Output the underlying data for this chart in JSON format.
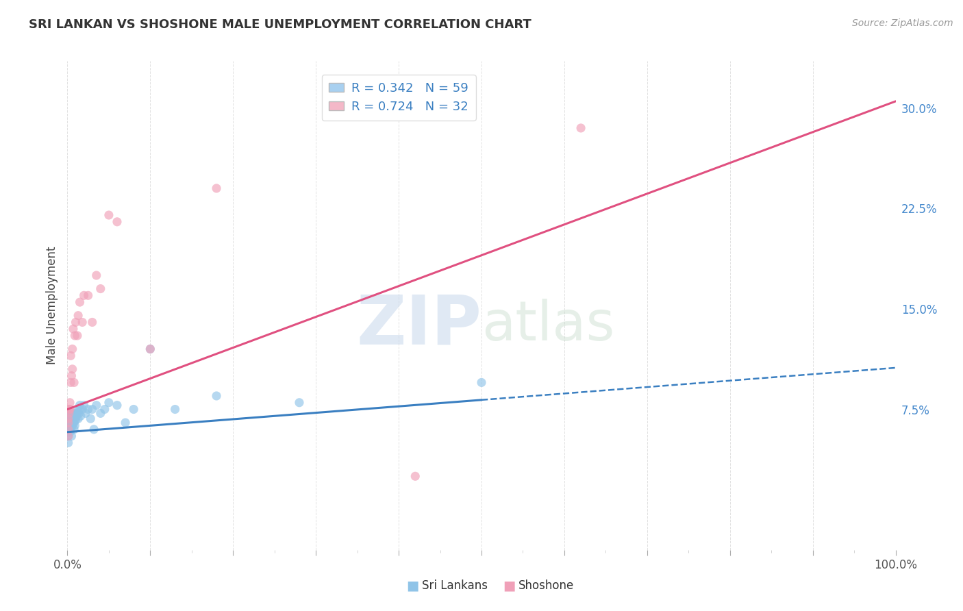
{
  "title": "SRI LANKAN VS SHOSHONE MALE UNEMPLOYMENT CORRELATION CHART",
  "source_text": "Source: ZipAtlas.com",
  "ylabel": "Male Unemployment",
  "legend_entries": [
    {
      "label": "R = 0.342   N = 59",
      "color": "#A8D0F0"
    },
    {
      "label": "R = 0.724   N = 32",
      "color": "#F4B8C8"
    }
  ],
  "legend_sublabels": [
    "Sri Lankans",
    "Shoshone"
  ],
  "yticks_right": [
    0.0,
    0.075,
    0.15,
    0.225,
    0.3
  ],
  "ytick_labels_right": [
    "",
    "7.5%",
    "15.0%",
    "22.5%",
    "30.0%"
  ],
  "background_color": "#FFFFFF",
  "plot_bg_color": "#FFFFFF",
  "grid_color": "#CCCCCC",
  "watermark_zip": "ZIP",
  "watermark_atlas": "atlas",
  "sri_lankan_color": "#90C4E8",
  "shoshone_color": "#F0A0B8",
  "sri_lankan_line_color": "#3A7FC1",
  "shoshone_line_color": "#E05080",
  "sri_lankan_trend": {
    "x_start": 0.0,
    "y_start": 0.058,
    "x_end": 0.5,
    "y_end": 0.082,
    "x_dash_end": 1.0,
    "y_dash_end": 0.106
  },
  "shoshone_trend": {
    "x_start": 0.0,
    "y_start": 0.075,
    "x_end": 1.0,
    "y_end": 0.305
  },
  "xlim": [
    0.0,
    1.0
  ],
  "ylim": [
    -0.03,
    0.335
  ],
  "sri_lankan_scatter": {
    "x": [
      0.001,
      0.001,
      0.001,
      0.002,
      0.002,
      0.002,
      0.002,
      0.002,
      0.003,
      0.003,
      0.003,
      0.003,
      0.004,
      0.004,
      0.004,
      0.005,
      0.005,
      0.005,
      0.005,
      0.005,
      0.006,
      0.006,
      0.006,
      0.007,
      0.007,
      0.007,
      0.008,
      0.008,
      0.009,
      0.009,
      0.01,
      0.01,
      0.011,
      0.012,
      0.012,
      0.013,
      0.014,
      0.015,
      0.015,
      0.016,
      0.018,
      0.02,
      0.022,
      0.025,
      0.028,
      0.03,
      0.032,
      0.035,
      0.04,
      0.045,
      0.05,
      0.06,
      0.07,
      0.08,
      0.1,
      0.13,
      0.18,
      0.28,
      0.5
    ],
    "y": [
      0.05,
      0.055,
      0.06,
      0.06,
      0.062,
      0.065,
      0.068,
      0.072,
      0.058,
      0.063,
      0.067,
      0.07,
      0.06,
      0.065,
      0.07,
      0.062,
      0.065,
      0.068,
      0.072,
      0.055,
      0.063,
      0.067,
      0.07,
      0.065,
      0.068,
      0.072,
      0.06,
      0.065,
      0.063,
      0.068,
      0.067,
      0.072,
      0.07,
      0.072,
      0.075,
      0.068,
      0.072,
      0.075,
      0.078,
      0.07,
      0.075,
      0.078,
      0.072,
      0.075,
      0.068,
      0.075,
      0.06,
      0.078,
      0.072,
      0.075,
      0.08,
      0.078,
      0.065,
      0.075,
      0.12,
      0.075,
      0.085,
      0.08,
      0.095
    ]
  },
  "shoshone_scatter": {
    "x": [
      0.001,
      0.001,
      0.001,
      0.001,
      0.002,
      0.002,
      0.003,
      0.003,
      0.004,
      0.004,
      0.005,
      0.006,
      0.006,
      0.007,
      0.008,
      0.009,
      0.01,
      0.012,
      0.013,
      0.015,
      0.018,
      0.02,
      0.025,
      0.03,
      0.035,
      0.04,
      0.05,
      0.06,
      0.1,
      0.18,
      0.42,
      0.62
    ],
    "y": [
      0.055,
      0.06,
      0.065,
      0.068,
      0.072,
      0.075,
      0.075,
      0.08,
      0.095,
      0.115,
      0.1,
      0.105,
      0.12,
      0.135,
      0.095,
      0.13,
      0.14,
      0.13,
      0.145,
      0.155,
      0.14,
      0.16,
      0.16,
      0.14,
      0.175,
      0.165,
      0.22,
      0.215,
      0.12,
      0.24,
      0.025,
      0.285
    ]
  }
}
